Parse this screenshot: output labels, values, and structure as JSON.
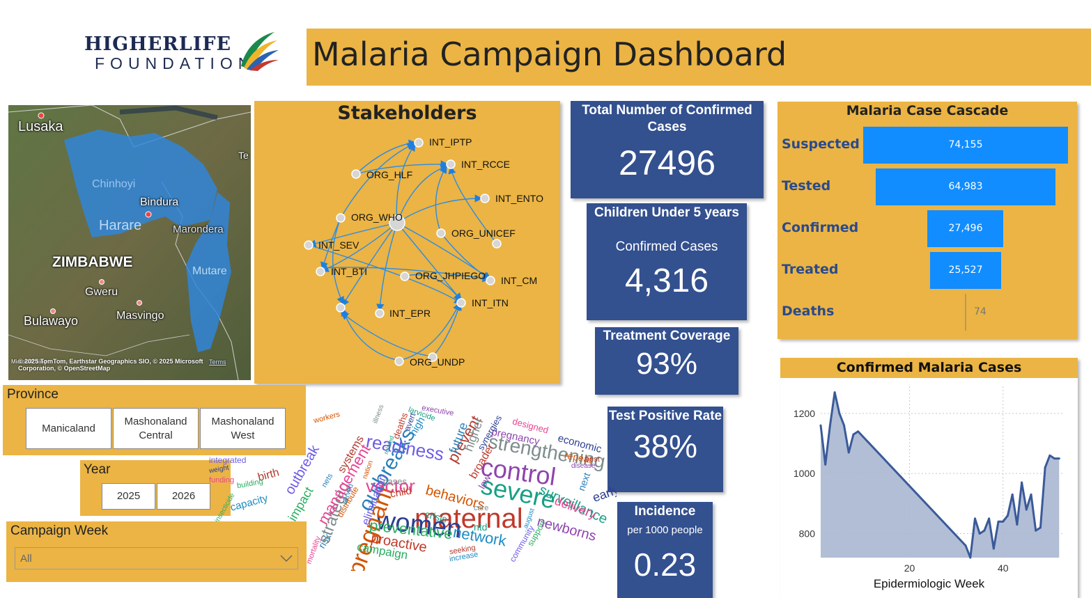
{
  "header": {
    "logo_line1": "HIGHERLIFE",
    "logo_line2": "FOUNDATION",
    "title": "Malaria Campaign Dashboard"
  },
  "map": {
    "labels": {
      "lusaka": "Lusaka",
      "chinhoyi": "Chinhoyi",
      "bindura": "Bindura",
      "harare": "Harare",
      "marondera": "Marondera",
      "zimbabwe": "ZIMBABWE",
      "mutare": "Mutare",
      "gweru": "Gweru",
      "bulawayo": "Bulawayo",
      "masvingo": "Masvingo",
      "te": "Te"
    },
    "attribution": "© 2025 TomTom, Earthstar Geographics SIO, © 2025 Microsoft Corporation, © OpenStreetMap",
    "terms": "Terms",
    "ms_logo": "Microsoft Bing"
  },
  "stakeholders": {
    "title": "Stakeholders",
    "nodes": [
      "INT_IPTP",
      "INT_RCCE",
      "ORG_HLF",
      "INT_ENTO",
      "ORG_WHO",
      "ORG_UNICEF",
      "INT_SEV",
      "INT_BTI",
      "ORG_JHPIEGO",
      "INT_CM",
      "INT_ITN",
      "INT_EPR",
      "ORG_UNDP"
    ]
  },
  "kpis": {
    "total_confirmed": {
      "label": "Total Number of Confirmed Cases",
      "value": "27496"
    },
    "under5": {
      "label": "Children Under 5 years",
      "sublabel": "Confirmed Cases",
      "value": "4,316"
    },
    "treatment": {
      "label": "Treatment Coverage",
      "value": "93%"
    },
    "positive": {
      "label": "Test Positive Rate",
      "value": "38%"
    },
    "incidence": {
      "label": "Incidence",
      "sublabel": "per 1000 people",
      "value": "0.23"
    }
  },
  "cascade": {
    "title": "Malaria Case Cascade",
    "rows": [
      {
        "label": "Suspected",
        "display": "74,155",
        "value": 74155
      },
      {
        "label": "Tested",
        "display": "64,983",
        "value": 64983
      },
      {
        "label": "Confirmed",
        "display": "27,496",
        "value": 27496
      },
      {
        "label": "Treated",
        "display": "25,527",
        "value": 25527
      },
      {
        "label": "Deaths",
        "display": "74",
        "value": 74
      }
    ],
    "bar_color": "#118DFF"
  },
  "chart_data": {
    "type": "area",
    "title": "Confirmed Malaria Cases",
    "xlabel": "Epidermiologic Week",
    "ylabel": "",
    "xlim": [
      1,
      53
    ],
    "ylim": [
      720,
      1290
    ],
    "xticks": [
      20,
      40
    ],
    "yticks": [
      800,
      1000,
      1200
    ],
    "x": [
      1,
      2,
      3,
      4,
      5,
      6,
      7,
      8,
      9,
      32,
      33,
      34,
      35,
      36,
      37,
      38,
      39,
      40,
      41,
      42,
      43,
      44,
      45,
      46,
      47,
      48,
      49,
      50,
      51,
      52
    ],
    "values": [
      1160,
      1030,
      1160,
      1270,
      1200,
      1160,
      1070,
      1130,
      1140,
      760,
      720,
      850,
      800,
      810,
      850,
      750,
      840,
      840,
      860,
      930,
      830,
      970,
      880,
      930,
      810,
      820,
      1020,
      1060,
      1050,
      1050
    ],
    "color": "#3A5A99"
  },
  "slicers": {
    "province": {
      "title": "Province",
      "options": [
        "Manicaland",
        "Mashonaland\nCentral",
        "Mashonaland\nWest"
      ]
    },
    "year": {
      "title": "Year",
      "options": [
        "2025",
        "2026"
      ]
    },
    "week": {
      "title": "Campaign Week",
      "selected": "All"
    }
  },
  "wordcloud": {
    "words": [
      "maternal",
      "women",
      "control",
      "severe",
      "pregnant",
      "outbreaks",
      "strengthening",
      "vector",
      "preventative",
      "readiness",
      "prevent",
      "network",
      "proactive",
      "early",
      "newborns",
      "surveillance",
      "behaviors",
      "future",
      "higher",
      "delivery",
      "campaign",
      "elimination",
      "systems",
      "high",
      "child",
      "economic",
      "pregnancy",
      "ntd",
      "repeat",
      "next",
      "cases",
      "designed",
      "support",
      "community",
      "seeking",
      "increase",
      "deaths",
      "avert",
      "executive",
      "larvicide",
      "workers",
      "risk",
      "strategic",
      "management",
      "impact",
      "outbreak",
      "birth",
      "capacity",
      "broader",
      "synergies",
      "low",
      "crisis",
      "distribute",
      "nets",
      "care",
      "mortality",
      "building",
      "integrated",
      "responsive",
      "august",
      "approaching",
      "weight",
      "disease",
      "related",
      "nation",
      "served",
      "illness",
      "funding",
      "insecticide",
      "diagnose",
      "best"
    ]
  }
}
